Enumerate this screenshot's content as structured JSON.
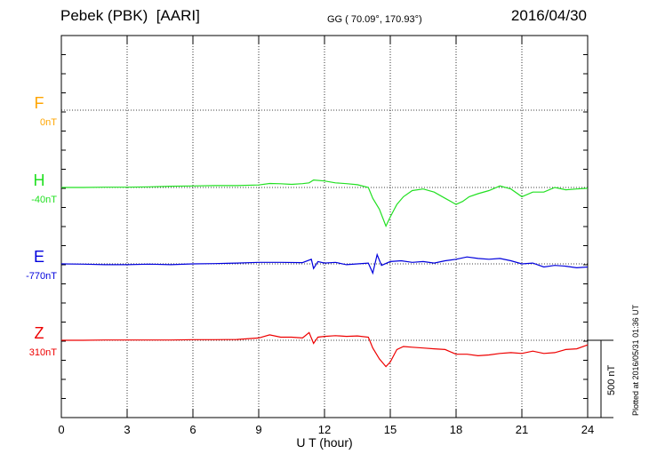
{
  "header": {
    "station": "Pebek (PBK)  [AARI]",
    "coords": "GG ( 70.09°, 170.93°)",
    "date": "2016/04/30"
  },
  "footer": {
    "plotted": "Plotted at 2016/05/31 01:36 UT"
  },
  "colors": {
    "F": "#FFA500",
    "H": "#22E022",
    "E": "#0000DD",
    "Z": "#EE0000"
  },
  "chart_data": {
    "type": "line",
    "xlabel": "U T (hour)",
    "xlim": [
      0,
      24
    ],
    "xticks": [
      0,
      3,
      6,
      9,
      12,
      15,
      18,
      21,
      24
    ],
    "scale_bar": "500 nT",
    "channels": [
      {
        "name": "F",
        "baseline": "0nT",
        "x": [],
        "y": []
      },
      {
        "name": "H",
        "baseline": "-40nT",
        "x": [
          0,
          1,
          2,
          3,
          4,
          5,
          6,
          7,
          8,
          9,
          9.5,
          10,
          10.5,
          11,
          11.3,
          11.5,
          12,
          12.5,
          13,
          13.5,
          14,
          14.2,
          14.5,
          14.8,
          15,
          15.3,
          15.6,
          16,
          16.5,
          17,
          17.5,
          18,
          18.3,
          18.6,
          19,
          19.5,
          20,
          20.5,
          21,
          21.5,
          22,
          22.5,
          23,
          23.5,
          24
        ],
        "y": [
          0,
          0,
          2,
          2,
          4,
          8,
          10,
          12,
          12,
          16,
          26,
          24,
          20,
          25,
          30,
          48,
          42,
          30,
          25,
          18,
          0,
          -70,
          -140,
          -250,
          -190,
          -110,
          -60,
          -20,
          -10,
          -30,
          -70,
          -110,
          -90,
          -60,
          -40,
          -20,
          10,
          -10,
          -60,
          -30,
          -30,
          0,
          -15,
          -10,
          -5
        ]
      },
      {
        "name": "E",
        "baseline": "-770nT",
        "x": [
          0,
          1,
          2,
          3,
          4,
          5,
          6,
          7,
          8,
          9,
          10,
          11,
          11.4,
          11.5,
          11.7,
          12,
          12.5,
          13,
          13.5,
          14,
          14.2,
          14.4,
          14.6,
          15,
          15.5,
          16,
          16.5,
          17,
          17.5,
          18,
          18.5,
          19,
          19.5,
          20,
          20.5,
          21,
          21.5,
          22,
          22.5,
          23,
          23.5,
          24
        ],
        "y": [
          0,
          -2,
          -5,
          -5,
          -2,
          -5,
          0,
          2,
          5,
          10,
          10,
          8,
          30,
          -30,
          15,
          5,
          10,
          -5,
          0,
          5,
          -60,
          60,
          -10,
          15,
          20,
          10,
          15,
          5,
          20,
          30,
          45,
          35,
          30,
          35,
          20,
          0,
          5,
          -20,
          -10,
          -15,
          -25,
          -20
        ]
      },
      {
        "name": "Z",
        "baseline": "310nT",
        "x": [
          0,
          1,
          2,
          3,
          4,
          5,
          6,
          7,
          8,
          9,
          9.5,
          10,
          10.5,
          11,
          11.3,
          11.5,
          11.7,
          12,
          12.5,
          13,
          13.5,
          14,
          14.2,
          14.5,
          14.8,
          15,
          15.3,
          15.6,
          16,
          16.5,
          17,
          17.5,
          18,
          18.5,
          19,
          19.5,
          20,
          20.5,
          21,
          21.5,
          22,
          22.5,
          23,
          23.5,
          24
        ],
        "y": [
          0,
          0,
          2,
          2,
          2,
          2,
          4,
          4,
          5,
          15,
          35,
          20,
          20,
          15,
          50,
          -20,
          20,
          25,
          30,
          25,
          28,
          20,
          -50,
          -120,
          -170,
          -140,
          -60,
          -40,
          -45,
          -50,
          -55,
          -60,
          -90,
          -90,
          -100,
          -95,
          -85,
          -80,
          -85,
          -70,
          -85,
          -80,
          -60,
          -55,
          -30
        ]
      }
    ]
  }
}
